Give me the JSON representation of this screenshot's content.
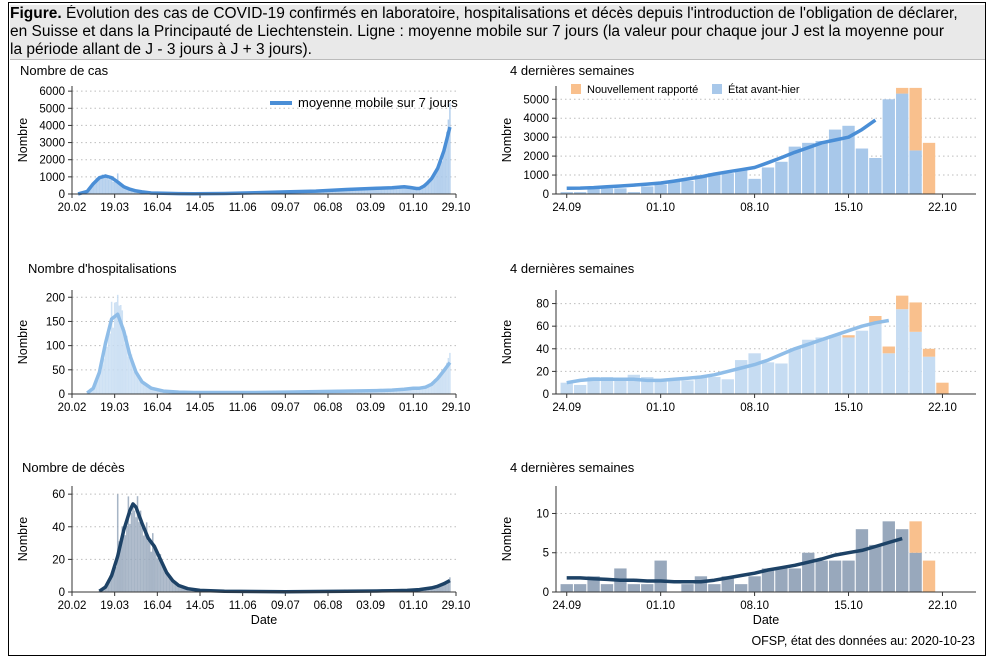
{
  "caption": {
    "label": "Figure.",
    "line1": " Évolution des cas de COVID-19 confirmés en laboratoire, hospitalisations et décès depuis l'introduction de l'obligation de déclarer,",
    "line2": "en Suisse et dans la Principauté de Liechtenstein. Ligne : moyenne mobile sur 7 jours (la valeur pour chaque jour J est la moyenne pour",
    "line3": "la période allant de J - 3 jours à J + 3 jours)."
  },
  "source": "OFSP, état des données au: 2020-10-23",
  "colors": {
    "cases": "#4a8ed6",
    "hosp": "#8fbde8",
    "deaths": "#1d4266",
    "bar_cases": "#a8c8ea",
    "bar_hosp": "#c6dcf2",
    "bar_deaths": "#98a8bc",
    "new_reported": "#f9c08d",
    "grid": "#bdbdbd"
  },
  "chart_data": [
    {
      "type": "bar",
      "title": "Nombre de cas",
      "xlabel": "",
      "ylabel": "Nombre",
      "legend": {
        "label": "moyenne mobile sur 7 jours",
        "placement": "top-right"
      },
      "xticks": [
        "20.02",
        "19.03",
        "16.04",
        "14.05",
        "11.06",
        "09.07",
        "06.08",
        "03.09",
        "01.10",
        "29.10"
      ],
      "yticks": [
        0,
        1000,
        2000,
        3000,
        4000,
        5000,
        6000
      ],
      "ylim": [
        0,
        6300
      ],
      "x_day_range": [
        0,
        252
      ],
      "series": [
        {
          "name": "moyenne mobile sur 7 jours",
          "type": "line",
          "days": [
            4,
            10,
            14,
            18,
            22,
            26,
            30,
            34,
            38,
            42,
            46,
            52,
            60,
            70,
            80,
            100,
            120,
            140,
            160,
            180,
            200,
            210,
            218,
            222,
            226,
            228,
            231,
            233,
            236,
            240,
            244,
            246,
            248
          ],
          "values": [
            5,
            150,
            600,
            950,
            1050,
            950,
            700,
            420,
            280,
            180,
            120,
            60,
            40,
            25,
            20,
            30,
            70,
            120,
            170,
            260,
            330,
            360,
            420,
            380,
            320,
            320,
            460,
            620,
            900,
            1500,
            2500,
            3200,
            3900
          ]
        },
        {
          "name": "",
          "type": "bar",
          "values_sparse": {
            "day_start": 10,
            "peak_1": 1200,
            "peak_2_day": 248,
            "peak_2": 5300
          }
        }
      ]
    },
    {
      "type": "bar",
      "title": "4 dernières semaines",
      "ylabel": "Nombre",
      "legend": {
        "labels": [
          "Nouvellement rapporté",
          "État avant-hier"
        ],
        "placement": "top"
      },
      "xticks": [
        "24.09",
        "01.10",
        "08.10",
        "15.10",
        "22.10"
      ],
      "yticks": [
        0,
        1000,
        2000,
        3000,
        4000,
        5000
      ],
      "ylim": [
        0,
        5700
      ],
      "x_day_range": [
        -0.8,
        30.5
      ],
      "series": [
        {
          "name": "État avant-hier",
          "type": "bar",
          "values": [
            100,
            100,
            300,
            300,
            300,
            100,
            400,
            500,
            700,
            700,
            1000,
            1100,
            1100,
            1300,
            800,
            1400,
            1700,
            2500,
            2700,
            2800,
            3400,
            3600,
            2400,
            1900,
            5000,
            5300,
            2300,
            0
          ]
        },
        {
          "name": "Nouvellement rapporté",
          "type": "bar",
          "values": [
            0,
            0,
            0,
            0,
            0,
            0,
            0,
            0,
            0,
            0,
            0,
            0,
            0,
            0,
            0,
            0,
            0,
            0,
            0,
            0,
            0,
            0,
            0,
            0,
            0,
            300,
            3300,
            2700
          ]
        },
        {
          "name": "moyenne mobile sur 7 jours",
          "type": "line",
          "values": [
            300,
            310,
            340,
            380,
            420,
            470,
            520,
            580,
            680,
            790,
            900,
            1050,
            1170,
            1280,
            1400,
            1650,
            1920,
            2200,
            2450,
            2700,
            2850,
            3000,
            3400,
            3900
          ]
        }
      ]
    },
    {
      "type": "bar",
      "title": "Nombre d'hospitalisations",
      "ylabel": "Nombre",
      "xticks": [
        "20.02",
        "19.03",
        "16.04",
        "14.05",
        "11.06",
        "09.07",
        "06.08",
        "03.09",
        "01.10",
        "29.10"
      ],
      "yticks": [
        0,
        50,
        100,
        150,
        200
      ],
      "ylim": [
        0,
        215
      ],
      "x_day_range": [
        0,
        252
      ],
      "series": [
        {
          "name": "",
          "type": "line",
          "days": [
            10,
            14,
            18,
            22,
            26,
            30,
            34,
            38,
            42,
            46,
            52,
            60,
            70,
            80,
            100,
            120,
            140,
            160,
            180,
            200,
            210,
            218,
            224,
            228,
            232,
            236,
            240,
            244,
            248
          ],
          "values": [
            2,
            12,
            45,
            105,
            155,
            165,
            130,
            80,
            45,
            25,
            12,
            6,
            4,
            3,
            3,
            3,
            4,
            5,
            6,
            7,
            8,
            10,
            12,
            12,
            14,
            20,
            32,
            48,
            65
          ]
        },
        {
          "name": "",
          "type": "bar",
          "values_sparse": {
            "peak_1": 205,
            "peak_2": 85
          }
        }
      ]
    },
    {
      "type": "bar",
      "title": "4 dernières semaines",
      "ylabel": "Nombre",
      "xticks": [
        "24.09",
        "01.10",
        "08.10",
        "15.10",
        "22.10"
      ],
      "yticks": [
        0,
        20,
        40,
        60,
        80
      ],
      "ylim": [
        0,
        92
      ],
      "x_day_range": [
        -0.8,
        30.5
      ],
      "series": [
        {
          "name": "État avant-hier",
          "type": "bar",
          "values": [
            10,
            8,
            15,
            15,
            13,
            17,
            15,
            11,
            12,
            12,
            15,
            15,
            13,
            30,
            36,
            28,
            27,
            40,
            48,
            50,
            52,
            50,
            56,
            62,
            36,
            75,
            55,
            33,
            0
          ]
        },
        {
          "name": "Nouvellement rapporté",
          "type": "bar",
          "values": [
            0,
            0,
            0,
            0,
            0,
            0,
            0,
            0,
            0,
            0,
            0,
            0,
            0,
            0,
            0,
            0,
            0,
            0,
            0,
            0,
            0,
            2,
            0,
            7,
            6,
            12,
            26,
            7,
            10
          ]
        },
        {
          "name": "moyenne mobile sur 7 jours",
          "type": "line",
          "values": [
            10,
            12,
            13,
            13,
            13,
            13,
            12,
            12,
            13,
            14,
            15,
            17,
            20,
            23,
            26,
            30,
            35,
            40,
            44,
            48,
            52,
            56,
            60,
            63,
            65
          ]
        }
      ]
    },
    {
      "type": "bar",
      "title": "Nombre de décès",
      "xlabel": "Date",
      "ylabel": "Nombre",
      "xticks": [
        "20.02",
        "19.03",
        "16.04",
        "14.05",
        "11.06",
        "09.07",
        "06.08",
        "03.09",
        "01.10",
        "29.10"
      ],
      "yticks": [
        0,
        20,
        40,
        60
      ],
      "ylim": [
        0,
        65
      ],
      "x_day_range": [
        0,
        252
      ],
      "series": [
        {
          "name": "",
          "type": "line",
          "days": [
            18,
            22,
            26,
            30,
            34,
            38,
            40,
            42,
            46,
            50,
            54,
            58,
            62,
            66,
            70,
            76,
            84,
            100,
            120,
            140,
            160,
            180,
            200,
            210,
            220,
            228,
            236,
            240,
            244,
            248
          ],
          "values": [
            0.5,
            3,
            10,
            22,
            38,
            50,
            54,
            52,
            42,
            33,
            28,
            20,
            12,
            7,
            4,
            2,
            1,
            0.5,
            0.3,
            0.2,
            0.3,
            0.4,
            0.6,
            0.8,
            1,
            1.5,
            2.5,
            3.5,
            5,
            7
          ]
        },
        {
          "name": "",
          "type": "bar",
          "values_sparse": {
            "peak_1": 60,
            "peak_2": 9
          }
        }
      ]
    },
    {
      "type": "bar",
      "title": "4 dernières semaines",
      "xlabel": "Date",
      "ylabel": "Nombre",
      "xticks": [
        "24.09",
        "01.10",
        "08.10",
        "15.10",
        "22.10"
      ],
      "yticks": [
        0,
        5,
        10
      ],
      "ylim": [
        0,
        13.5
      ],
      "x_day_range": [
        -0.8,
        30.5
      ],
      "series": [
        {
          "name": "État avant-hier",
          "type": "bar",
          "values": [
            1,
            1,
            2,
            1,
            3,
            1,
            1,
            4,
            0,
            1,
            2,
            1,
            2,
            1,
            2,
            3,
            3,
            3,
            5,
            4,
            4,
            4,
            8,
            6,
            9,
            8,
            5,
            0
          ]
        },
        {
          "name": "Nouvellement rapporté",
          "type": "bar",
          "values": [
            0,
            0,
            0,
            0,
            0,
            0,
            0,
            0,
            0,
            0,
            0,
            0,
            0,
            0,
            0,
            0,
            0,
            0,
            0,
            0,
            0,
            0,
            0,
            0,
            0,
            0,
            4,
            4
          ]
        },
        {
          "name": "moyenne mobile sur 7 jours",
          "type": "line",
          "values": [
            1.8,
            1.8,
            1.7,
            1.6,
            1.5,
            1.5,
            1.4,
            1.4,
            1.3,
            1.3,
            1.3,
            1.5,
            1.8,
            2.1,
            2.4,
            2.8,
            3.1,
            3.4,
            3.8,
            4.2,
            4.7,
            5.0,
            5.3,
            5.8,
            6.3,
            6.8
          ]
        }
      ]
    }
  ]
}
